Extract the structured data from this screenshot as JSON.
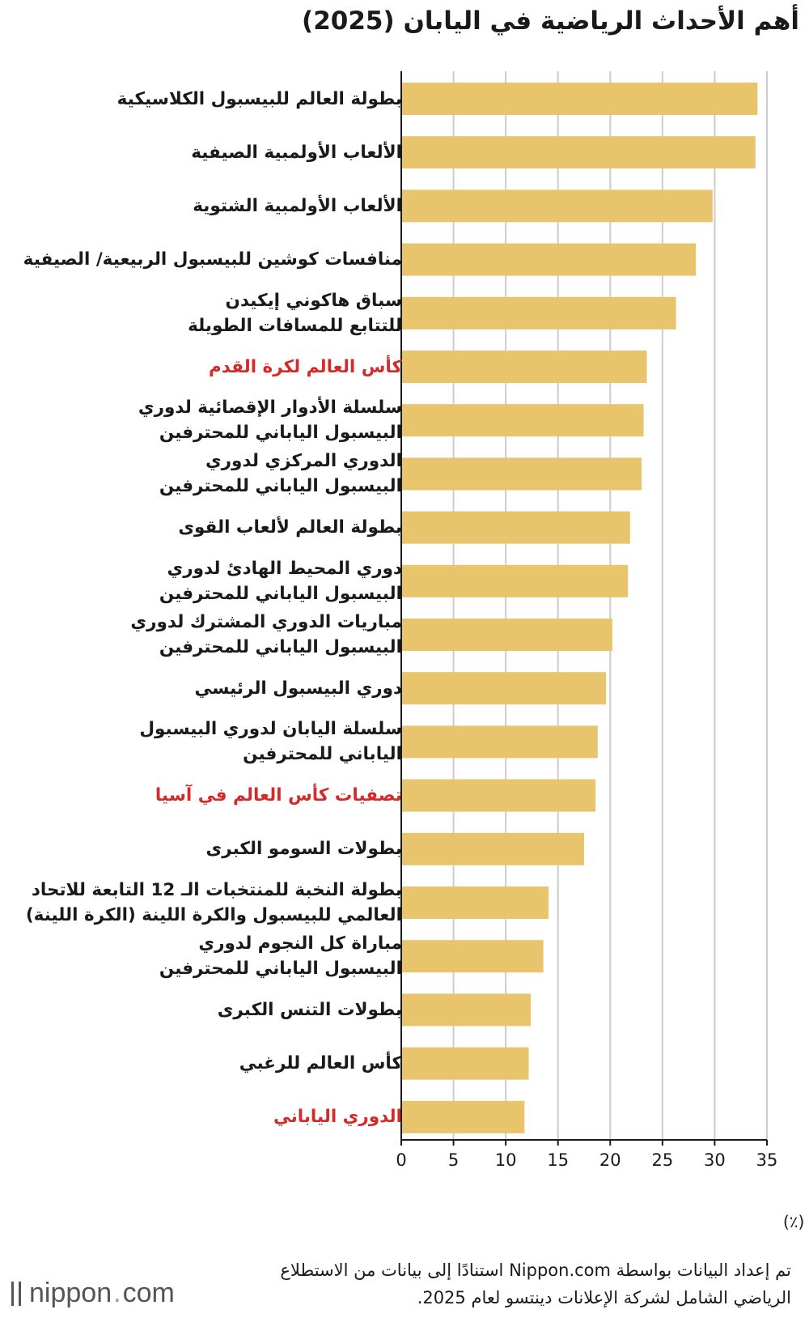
{
  "title": "أهم الأحداث الرياضية في اليابان (2025)",
  "unit": "(٪)",
  "source": "تم إعداد البيانات بواسطة Nippon.com استنادًا إلى بيانات من الاستطلاع الرياضي الشامل لشركة الإعلانات دينتسو لعام 2025.",
  "brand": {
    "name": "nippon",
    "dot": ".",
    "suffix": "com"
  },
  "colors": {
    "bar": "#e8c56c",
    "highlight_label": "#d32a2a",
    "grid": "#cccccc"
  },
  "chart_data": {
    "type": "bar",
    "orientation": "horizontal",
    "title": "أهم الأحداث الرياضية في اليابان (2025)",
    "xlabel": "(٪)",
    "ylabel": "",
    "xlim": [
      0,
      35
    ],
    "xticks": [
      0,
      5,
      10,
      15,
      20,
      25,
      30,
      35
    ],
    "grid": true,
    "categories": [
      [
        "بطولة العالم للبيسبول الكلاسيكية"
      ],
      [
        "الألعاب الأولمبية الصيفية"
      ],
      [
        "الألعاب الأولمبية الشتوية"
      ],
      [
        "منافسات كوشين للبيسبول الربيعية/ الصيفية"
      ],
      [
        "سباق هاكوني إيكيدن",
        "للتتابع للمسافات الطويلة"
      ],
      [
        "كأس العالم لكرة القدم"
      ],
      [
        "سلسلة الأدوار الإقصائية لدوري",
        "البيسبول الياباني للمحترفين"
      ],
      [
        "الدوري المركزي لدوري",
        "البيسبول الياباني للمحترفين"
      ],
      [
        "بطولة العالم لألعاب القوى"
      ],
      [
        "دوري المحيط الهادئ لدوري",
        "البيسبول الياباني للمحترفين"
      ],
      [
        "مباريات الدوري المشترك لدوري",
        "البيسبول الياباني للمحترفين"
      ],
      [
        "دوري البيسبول الرئيسي"
      ],
      [
        "سلسلة اليابان لدوري البيسبول",
        "الياباني للمحترفين"
      ],
      [
        "تصفيات كأس العالم في آسيا"
      ],
      [
        "بطولات السومو الكبرى"
      ],
      [
        "بطولة النخبة للمنتخبات الـ 12 التابعة للاتحاد",
        "العالمي للبيسبول والكرة اللينة (الكرة اللينة)"
      ],
      [
        "مباراة كل النجوم لدوري",
        "البيسبول الياباني للمحترفين"
      ],
      [
        "بطولات التنس الكبرى"
      ],
      [
        "كأس العالم للرغبي"
      ],
      [
        "الدوري الياباني"
      ]
    ],
    "highlighted": [
      false,
      false,
      false,
      false,
      false,
      true,
      false,
      false,
      false,
      false,
      false,
      false,
      false,
      true,
      false,
      false,
      false,
      false,
      false,
      true
    ],
    "values": [
      34.1,
      33.9,
      29.8,
      28.2,
      26.3,
      23.5,
      23.2,
      23.0,
      21.9,
      21.7,
      20.2,
      19.6,
      18.8,
      18.6,
      17.5,
      14.1,
      13.6,
      12.4,
      12.2,
      11.8
    ]
  }
}
